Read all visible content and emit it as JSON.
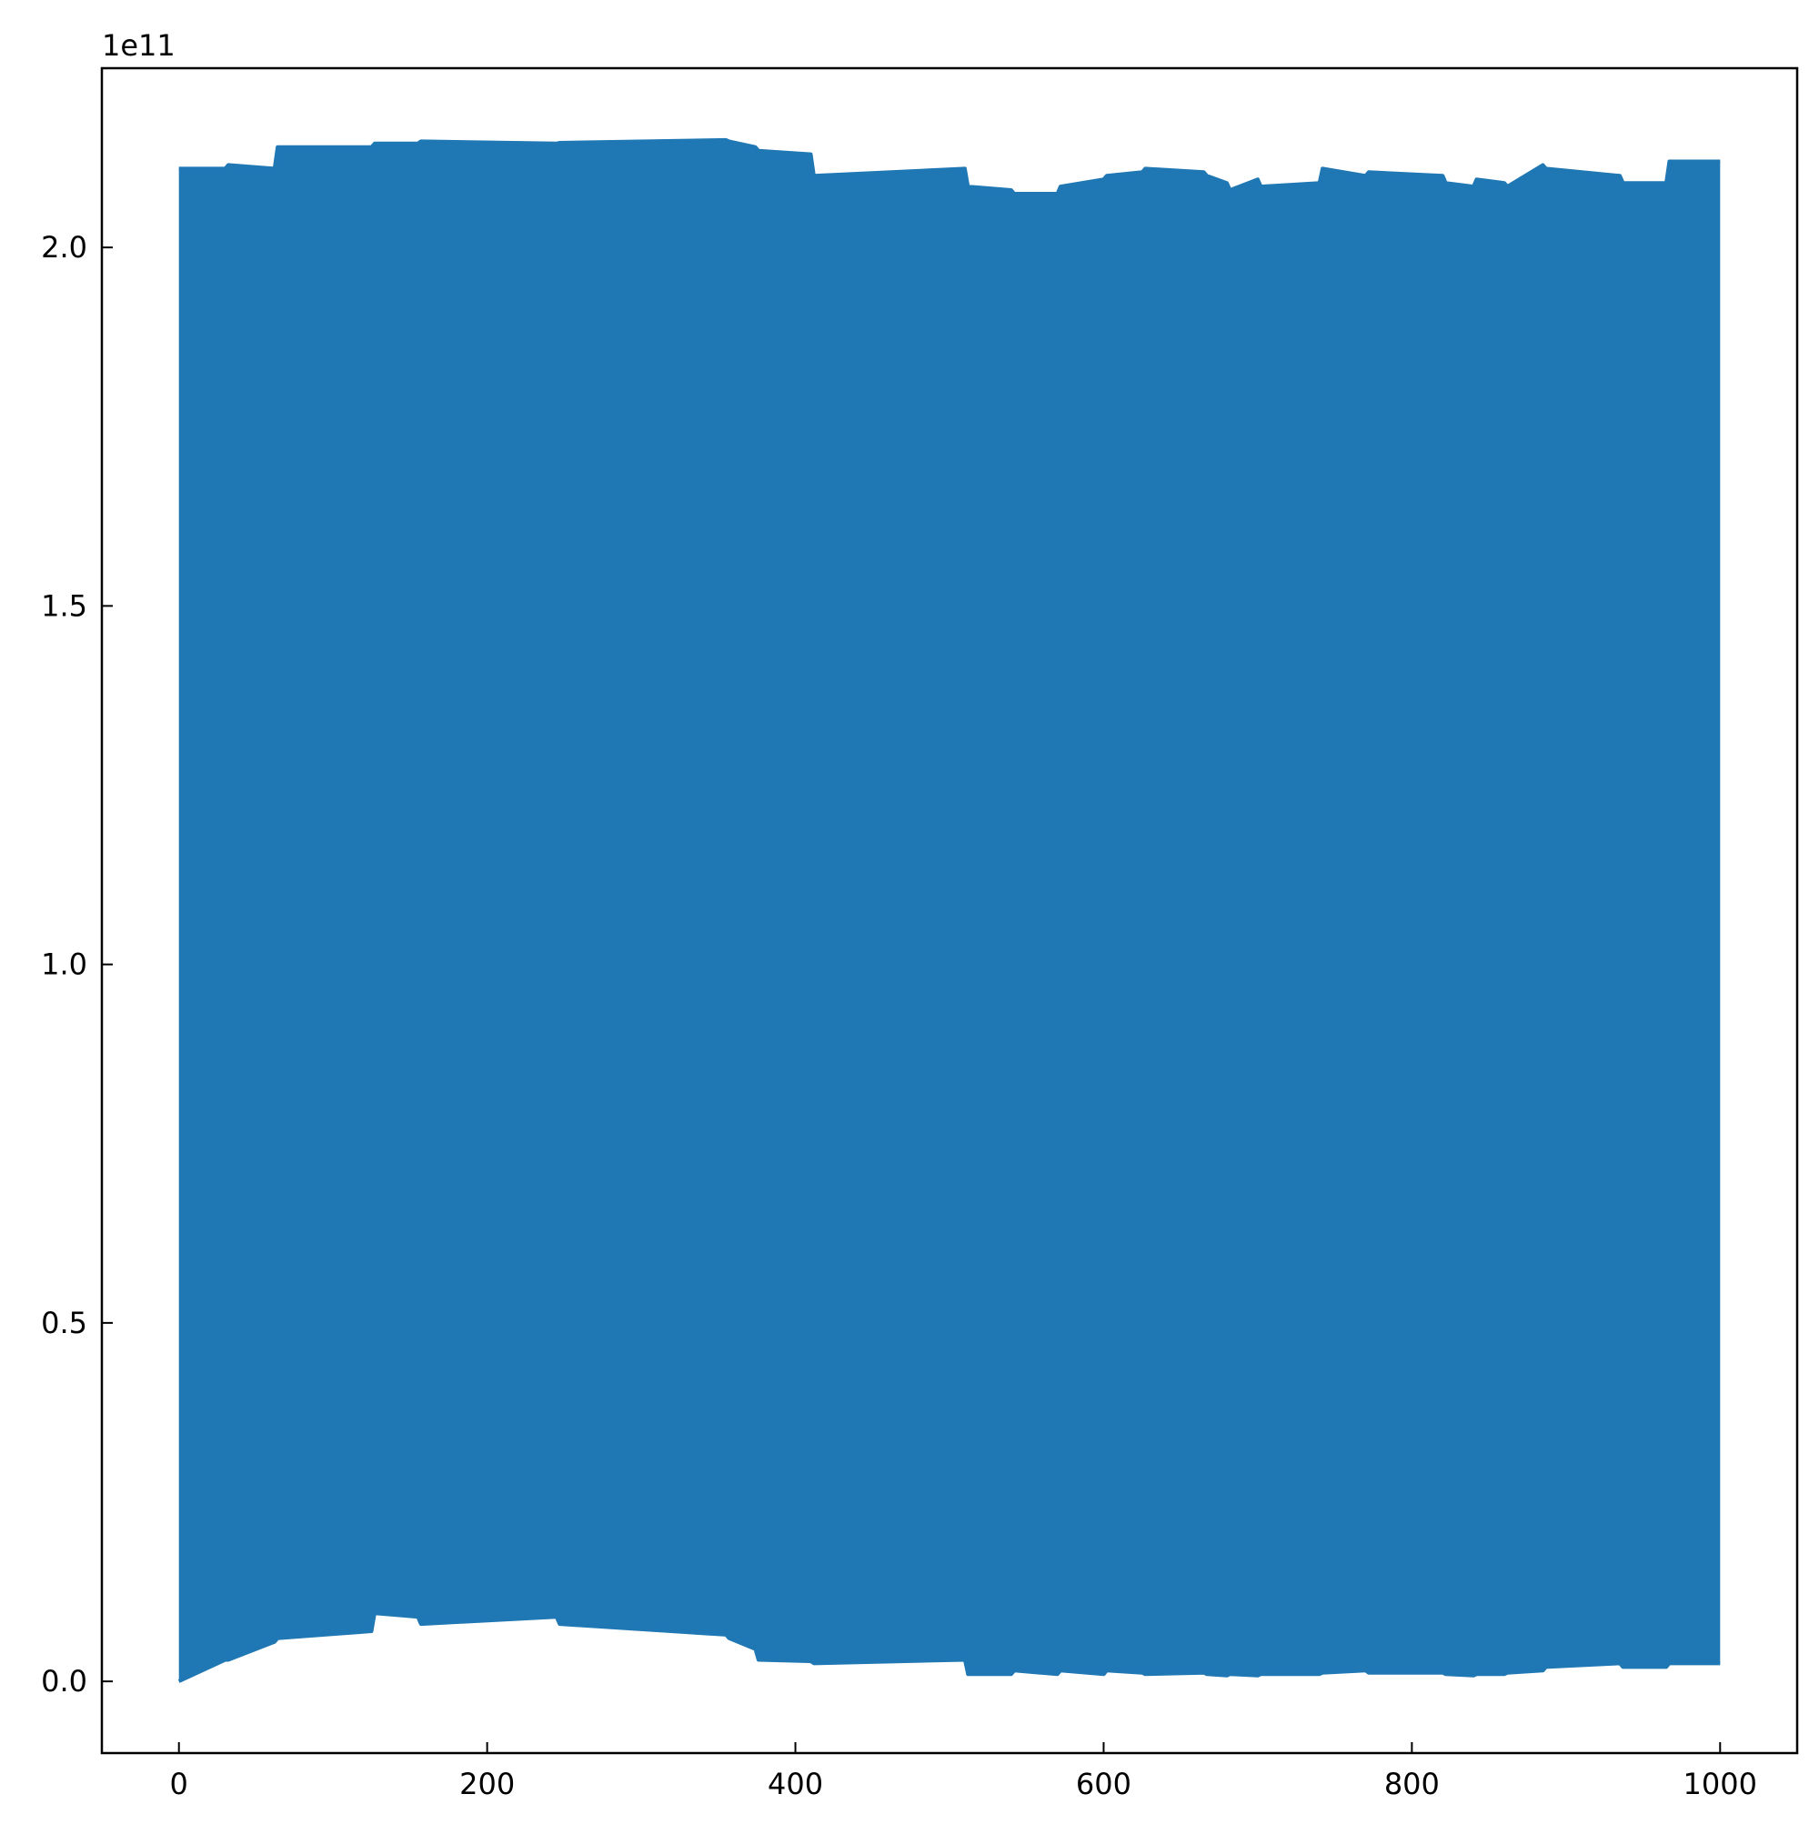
{
  "chart_data": {
    "type": "area",
    "title": "",
    "xlabel": "",
    "ylabel": "",
    "y_offset_label": "1e11",
    "xlim": [
      -50,
      1050
    ],
    "ylim": [
      -0.1,
      2.25
    ],
    "x_ticks": [
      0,
      200,
      400,
      600,
      800,
      1000
    ],
    "x_tick_labels": [
      "0",
      "200",
      "400",
      "600",
      "800",
      "1000"
    ],
    "y_ticks": [
      0.0,
      0.5,
      1.0,
      1.5,
      2.0
    ],
    "y_tick_labels": [
      "0.0",
      "0.5",
      "1.0",
      "1.5",
      "2.0"
    ],
    "grid": false,
    "color": "#1f77b4",
    "series": [
      {
        "description_of_values": "rapidly oscillating signal; upper and lower envelopes in units of 1e11",
        "x": [
          0,
          30,
          32,
          62,
          64,
          125,
          127,
          155,
          157,
          245,
          247,
          355,
          357,
          374,
          376,
          410,
          412,
          510,
          512,
          540,
          542,
          570,
          572,
          600,
          602,
          625,
          627,
          665,
          667,
          680,
          682,
          700,
          702,
          740,
          742,
          770,
          772,
          820,
          822,
          840,
          842,
          860,
          862,
          885,
          887,
          935,
          937,
          965,
          967,
          1000
        ],
        "upper": [
          2.11,
          2.11,
          2.115,
          2.11,
          2.14,
          2.14,
          2.145,
          2.145,
          2.148,
          2.145,
          2.146,
          2.15,
          2.148,
          2.14,
          2.135,
          2.13,
          2.1,
          2.11,
          2.085,
          2.08,
          2.075,
          2.075,
          2.085,
          2.095,
          2.1,
          2.105,
          2.11,
          2.105,
          2.1,
          2.09,
          2.08,
          2.095,
          2.085,
          2.09,
          2.11,
          2.1,
          2.105,
          2.1,
          2.09,
          2.085,
          2.095,
          2.09,
          2.085,
          2.115,
          2.11,
          2.1,
          2.09,
          2.09,
          2.12,
          2.12
        ],
        "lower": [
          0.0,
          0.03,
          0.03,
          0.055,
          0.06,
          0.07,
          0.095,
          0.09,
          0.08,
          0.09,
          0.08,
          0.065,
          0.06,
          0.045,
          0.03,
          0.028,
          0.025,
          0.03,
          0.01,
          0.01,
          0.015,
          0.01,
          0.015,
          0.01,
          0.015,
          0.012,
          0.01,
          0.012,
          0.01,
          0.008,
          0.01,
          0.008,
          0.01,
          0.01,
          0.012,
          0.015,
          0.012,
          0.012,
          0.01,
          0.008,
          0.01,
          0.01,
          0.012,
          0.015,
          0.02,
          0.025,
          0.02,
          0.02,
          0.025,
          0.025
        ]
      }
    ]
  }
}
